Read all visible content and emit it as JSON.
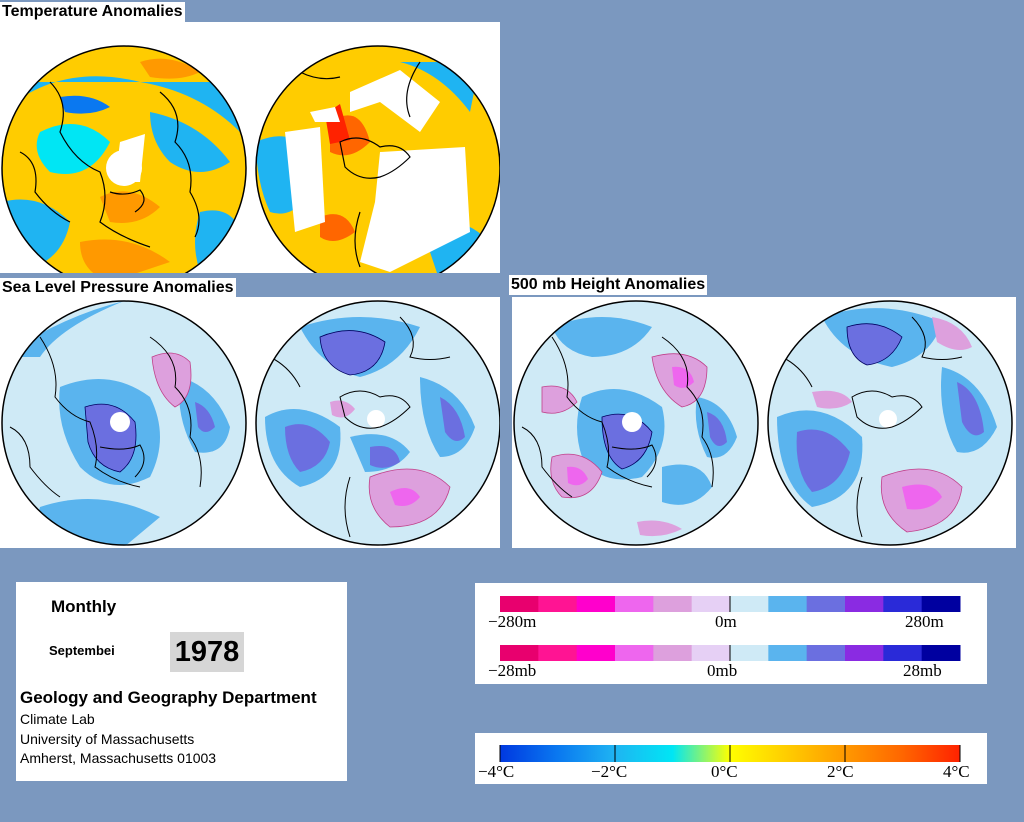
{
  "titles": {
    "temperature": "Temperature Anomalies",
    "slp": "Sea Level Pressure Anomalies",
    "height500": "500 mb Height Anomalies"
  },
  "info": {
    "period": "Monthly",
    "month": "Septembei",
    "year": "1978",
    "department": "Geology and Geography Department",
    "lab": "Climate Lab",
    "university": "University of Massachusetts",
    "address": "Amherst, Massachusetts 01003"
  },
  "legends": {
    "height": {
      "min": "−280m",
      "mid": "0m",
      "max": "280m"
    },
    "pressure": {
      "min": "−28mb",
      "mid": "0mb",
      "max": "28mb"
    },
    "temperature": {
      "t1": "−4°C",
      "t2": "−2°C",
      "t3": "0°C",
      "t4": "2°C",
      "t5": "4°C"
    }
  },
  "colors": {
    "background": "#7b98bf",
    "anomaly_scale": [
      "#e8006e",
      "#ff1493",
      "#ff00cc",
      "#ee66ee",
      "#dda0dd",
      "#e6d0f5",
      "#cfeaf6",
      "#5ab4ee",
      "#6b6fe0",
      "#8a2be2",
      "#2a2ad8",
      "#0000a0"
    ],
    "temperature_scale": [
      "#0038e0",
      "#0a78f0",
      "#1fb4f2",
      "#00e6f4",
      "#ffff00",
      "#ffcc00",
      "#ff9900",
      "#ff6600",
      "#ff2200"
    ]
  }
}
